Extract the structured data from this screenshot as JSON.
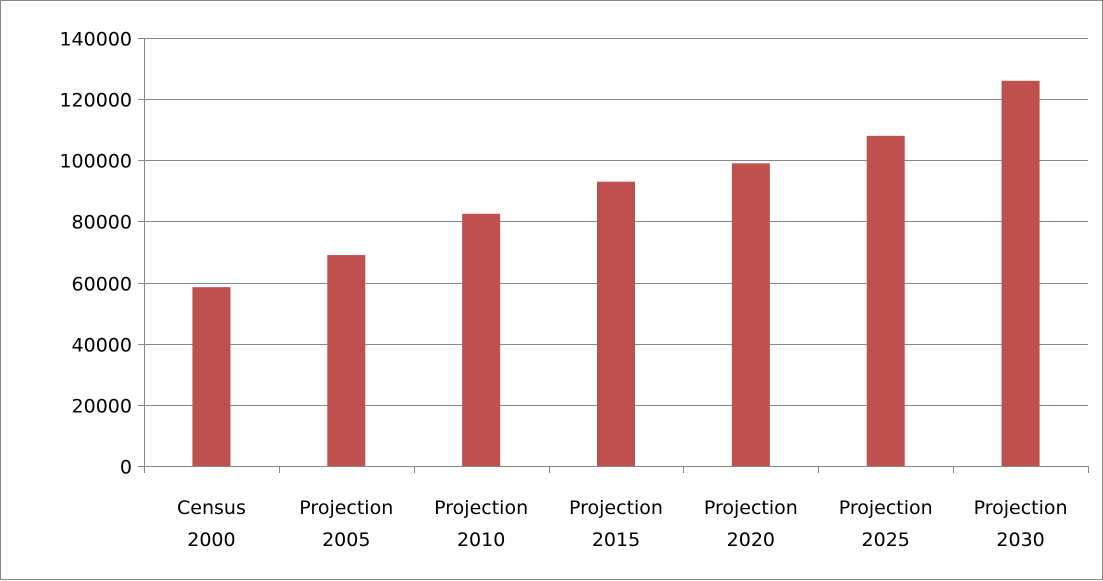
{
  "chart_data": {
    "type": "bar",
    "title": "",
    "xlabel": "",
    "ylabel": "",
    "categories": [
      [
        "Census",
        "2000"
      ],
      [
        "Projection",
        "2005"
      ],
      [
        "Projection",
        "2010"
      ],
      [
        "Projection",
        "2015"
      ],
      [
        "Projection",
        "2020"
      ],
      [
        "Projection",
        "2025"
      ],
      [
        "Projection",
        "2030"
      ]
    ],
    "series": [
      {
        "values": [
          58500,
          69000,
          82500,
          93000,
          99000,
          108000,
          126000
        ]
      }
    ],
    "ylim": [
      0,
      140000
    ],
    "yticks": [
      0,
      20000,
      40000,
      60000,
      80000,
      100000,
      120000,
      140000
    ],
    "y_tick_labels": [
      "0",
      "20000",
      "40000",
      "60000",
      "80000",
      "100000",
      "120000",
      "140000"
    ],
    "grid": true,
    "legend": "none",
    "colors": {
      "bar": "#c0504d",
      "grid": "#868686",
      "axis": "#868686"
    }
  }
}
